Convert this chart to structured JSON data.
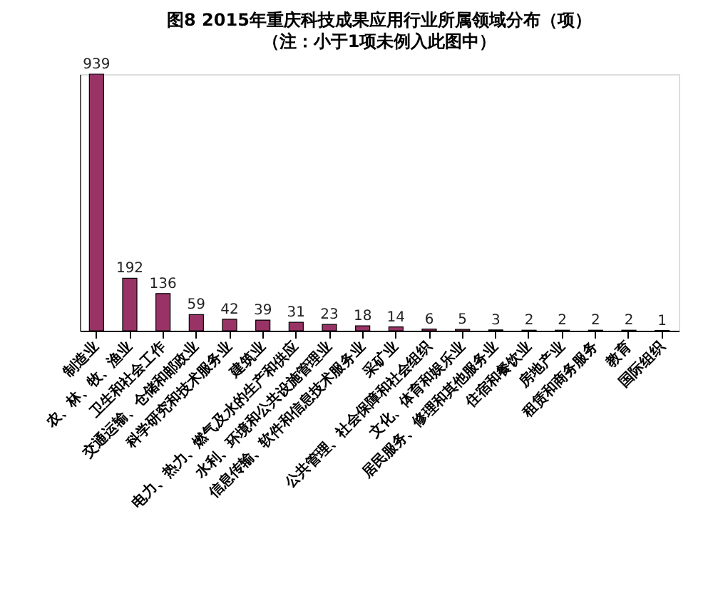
{
  "chart_data": {
    "type": "bar",
    "title": "图8 2015年重庆科技成果应用行业所属领域分布（项）",
    "subtitle": "（注：小于1项未例入此图中）",
    "categories": [
      "制造业",
      "农、林、牧、渔业",
      "卫生和社会工作",
      "交通运输、仓储和邮政业",
      "科学研究和技术服务业",
      "建筑业",
      "电力、热力、燃气及水的生产和供应",
      "水利、环境和公共设施管理业",
      "信息传输、软件和信息技术服务业",
      "采矿业",
      "公共管理、社会保障和社会组织",
      "文化、体育和娱乐业",
      "居民服务、修理和其他服务业",
      "住宿和餐饮业",
      "房地产业",
      "租赁和商务服务",
      "教育",
      "国际组织"
    ],
    "values": [
      939,
      192,
      136,
      59,
      42,
      39,
      31,
      23,
      18,
      14,
      6,
      5,
      3,
      2,
      2,
      2,
      2,
      1
    ],
    "color": "#993366",
    "data_labels": true,
    "grid": false,
    "tick_labels": "x"
  }
}
